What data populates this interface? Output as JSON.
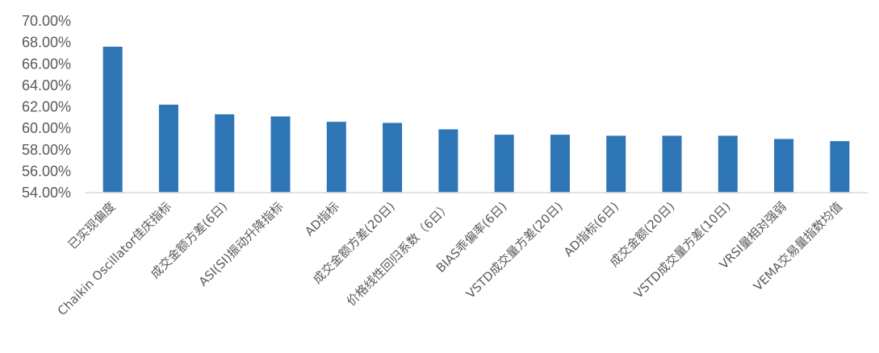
{
  "chart_data": {
    "type": "bar",
    "title": "",
    "xlabel": "",
    "ylabel": "",
    "ylim": [
      0.54,
      0.7
    ],
    "yticks": [
      0.54,
      0.56,
      0.58,
      0.6,
      0.62,
      0.64,
      0.66,
      0.68,
      0.7
    ],
    "ytick_labels": [
      "54.00%",
      "56.00%",
      "58.00%",
      "60.00%",
      "62.00%",
      "64.00%",
      "66.00%",
      "68.00%",
      "70.00%"
    ],
    "grid": false,
    "legend": "none",
    "bar_color": "#2E75B6",
    "categories": [
      "已实现偏度",
      "Chaikin Oscillator佳庆指标",
      "成交金额方差(6日)",
      "ASI(SI)振动升降指标",
      "AD指标",
      "成交金额方差(20日)",
      "价格线性回归系数（6日）",
      "BIAS乖偏率(6日)",
      "VSTD成交量方差(20日)",
      "AD指标(6日)",
      "成交金额(20日)",
      "VSTD成交量方差(10日)",
      "VRSI量相对强弱",
      "VEMA交易量指数均值"
    ],
    "values": [
      0.676,
      0.622,
      0.613,
      0.611,
      0.606,
      0.605,
      0.599,
      0.594,
      0.594,
      0.593,
      0.593,
      0.593,
      0.59,
      0.588
    ]
  }
}
